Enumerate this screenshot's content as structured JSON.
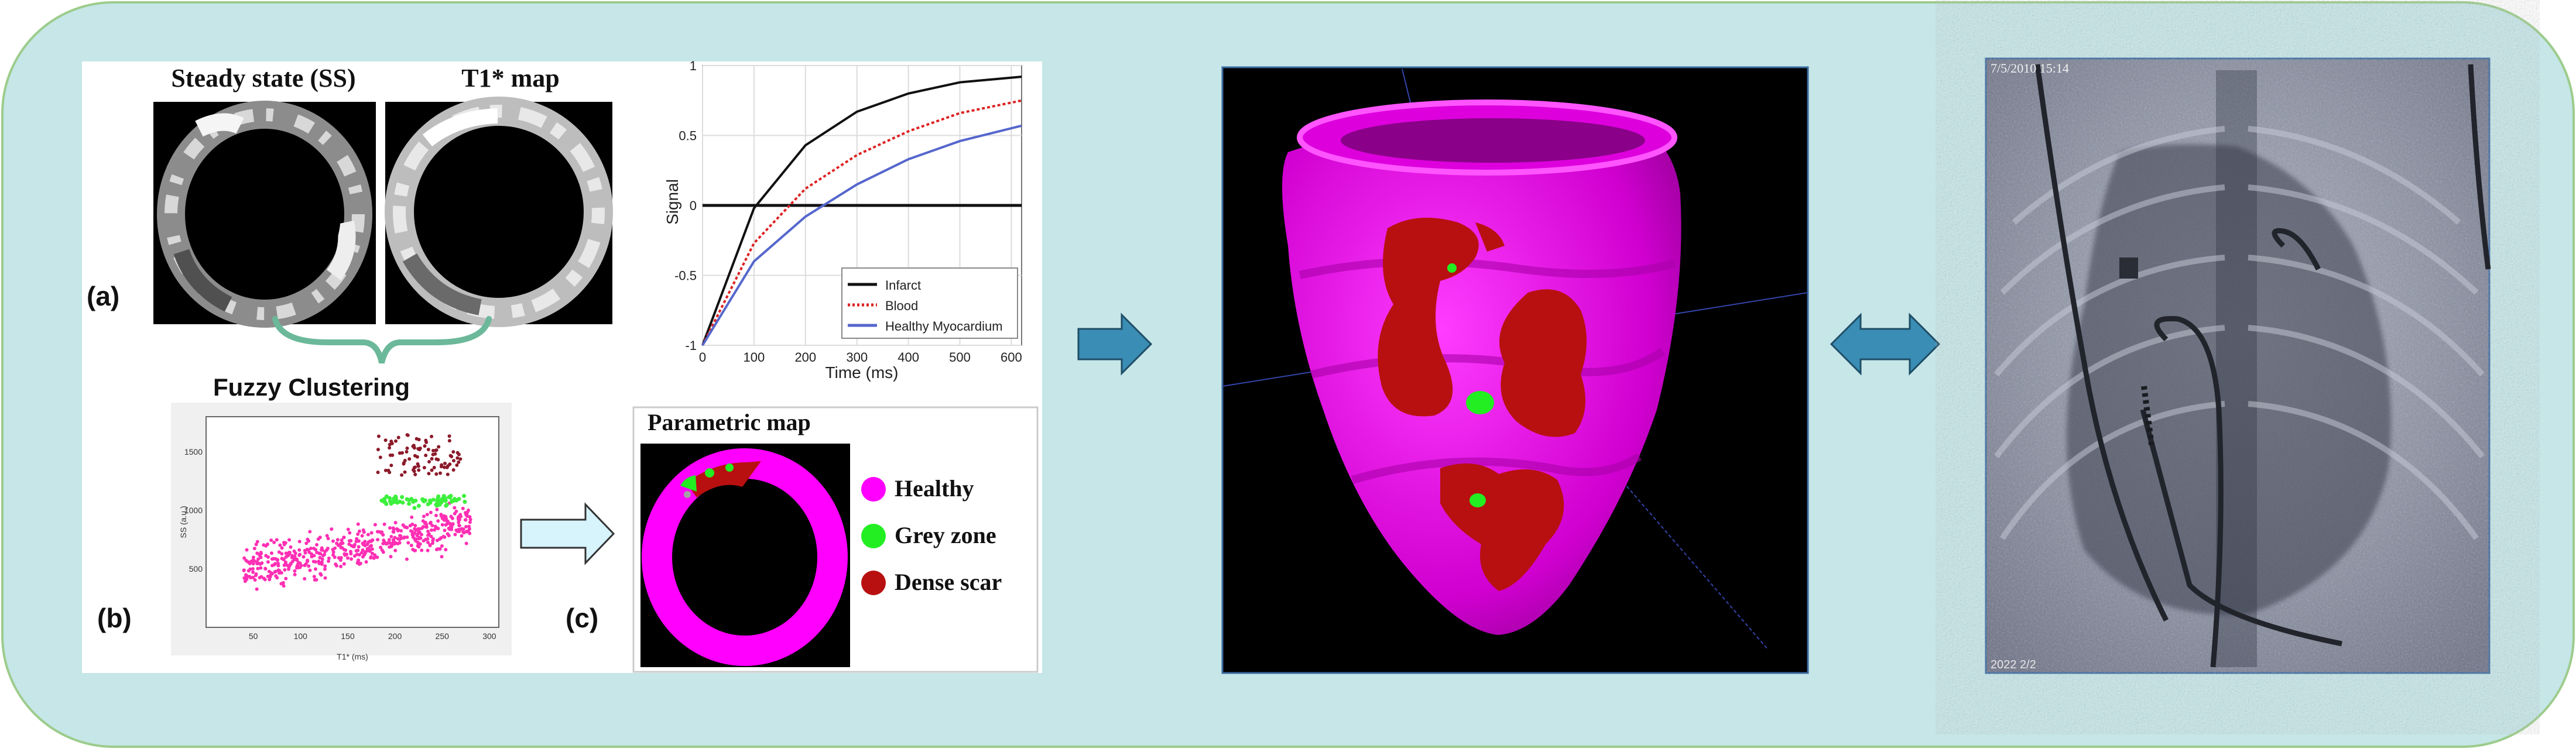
{
  "colors": {
    "panel_bg": "#c6e6e8",
    "panel_border": "#9ccc8c",
    "arrow_blue": "#3a8db5",
    "arrow_light": "#d7f3fb",
    "healthy": "#ff00ff",
    "grey_zone": "#22ee22",
    "dense_scar": "#b81010",
    "infarct_line": "#111111",
    "blood_line": "#dd2222",
    "myocardium_line": "#5566cc"
  },
  "panel_a": {
    "label": "(a)",
    "ss_title": "Steady state (SS)",
    "t1_title": "T1* map",
    "signal_chart": {
      "ylabel": "Signal",
      "xlabel": "Time (ms)",
      "y_ticks": [
        "1",
        "0.5",
        "0",
        "-0.5",
        "-1"
      ],
      "x_ticks": [
        "0",
        "100",
        "200",
        "300",
        "400",
        "500",
        "600"
      ],
      "legend": [
        "Infarct",
        "Blood",
        "Healthy Myocardium"
      ]
    }
  },
  "panel_b": {
    "label": "(b)",
    "title": "Fuzzy Clustering",
    "ylabel": "SS (a.u.)",
    "xlabel": "T1* (ms)",
    "y_ticks": [
      "1500",
      "1000",
      "500"
    ],
    "x_ticks": [
      "50",
      "100",
      "150",
      "200",
      "250",
      "300"
    ]
  },
  "panel_c": {
    "label": "(c)",
    "title": "Parametric map",
    "legend": [
      "Healthy",
      "Grey zone",
      "Dense scar"
    ]
  },
  "xray": {
    "timestamp": "7/5/2010 15:14",
    "footer": "2022 2/2"
  },
  "chart_data": {
    "type": "line",
    "x": [
      0,
      100,
      200,
      300,
      400,
      500,
      620
    ],
    "xlim": [
      0,
      620
    ],
    "ylim": [
      -1,
      1
    ],
    "series": [
      {
        "name": "Infarct",
        "values": [
          -1,
          -0.02,
          0.43,
          0.67,
          0.8,
          0.88,
          0.92
        ]
      },
      {
        "name": "Blood",
        "values": [
          -1,
          -0.27,
          0.12,
          0.36,
          0.53,
          0.66,
          0.75
        ]
      },
      {
        "name": "Healthy Myocardium",
        "values": [
          -1,
          -0.4,
          -0.08,
          0.15,
          0.33,
          0.46,
          0.57
        ]
      }
    ]
  }
}
